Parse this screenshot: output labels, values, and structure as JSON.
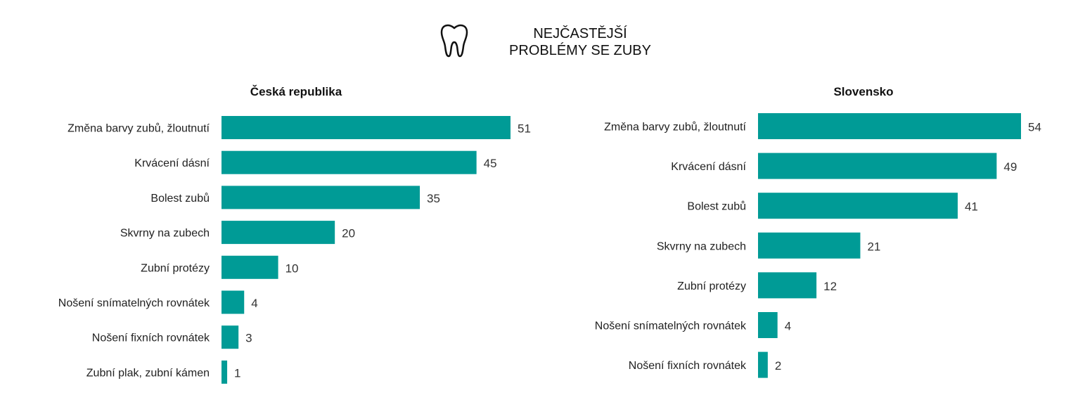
{
  "title": "NEJČASTĚJŠÍ\nPROBLÉMY SE ZUBY",
  "icon": "tooth-icon",
  "colors": {
    "bar": "#009B96",
    "text": "#222222"
  },
  "chart_data": [
    {
      "type": "bar",
      "orientation": "horizontal",
      "title": "Česká republika",
      "categories": [
        "Změna barvy zubů, žloutnutí",
        "Krvácení dásní",
        "Bolest zubů",
        "Skvrny na zubech",
        "Zubní protézy",
        "Nošení snímatelných rovnátek",
        "Nošení fixních rovnátek",
        "Zubní plak, zubní kámen"
      ],
      "values": [
        51,
        45,
        35,
        20,
        10,
        4,
        3,
        1
      ],
      "xlim": [
        0,
        51
      ],
      "grid": false,
      "legend": "none"
    },
    {
      "type": "bar",
      "orientation": "horizontal",
      "title": "Slovensko",
      "categories": [
        "Změna barvy zubů, žloutnutí",
        "Krvácení dásní",
        "Bolest zubů",
        "Skvrny na zubech",
        "Zubní protézy",
        "Nošení snímatelných rovnátek",
        "Nošení fixních rovnátek"
      ],
      "values": [
        54,
        49,
        41,
        21,
        12,
        4,
        2
      ],
      "xlim": [
        0,
        54
      ],
      "grid": false,
      "legend": "none"
    }
  ]
}
